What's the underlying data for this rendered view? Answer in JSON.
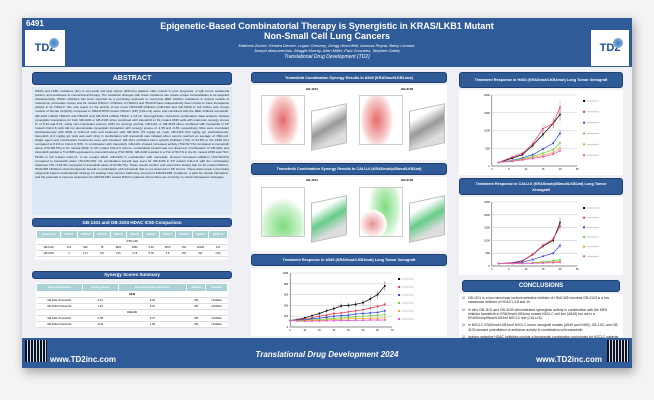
{
  "header": {
    "poster_number": "6491",
    "title_line1": "Epigenetic-Based Combinatorial Therapy is Synergistic in KRAS/LKB1 Mutant",
    "title_line2": "Non-Small Cell Lung Cancers",
    "authors_line1": "Matthew Zucker, Kendra Devore, Logan Chesney, Gregg Hirschfeld, Annissa Reyna, Betsy Livnane,",
    "authors_line2": "Joseph Mascarenhas, Maggie Murray, Allen Miller, Paul Gonzales, Stephen Gately",
    "organization": "Translational Drug Development (TD2)",
    "logo_text": "TD2"
  },
  "abstract": {
    "heading": "ABSTRACT",
    "text": "KRAS and LKB1 mutations (KL) in non-small cell lung cancer (NSCLC) patients often results in poor prognosis, a high tumor mutational burden, and resistance to conventional therapy. The metabolic changes with these mutations can create unique vulnerabilities to be targeted therapeutically. HDAC inhibition has been reported as a promising approach to overcome MEK inhibitor resistance in animal models of melanoma, pancreatic cancer and KL mutant NSCLC. Inhibition of HDAC3 and HDAC8 have independently been shown to have therapeutic activity in KL NSCLC. We now report on the activity of two novel HDAC6/8 inhibitors (GB-1101 and GB-3103) in cell culture and mouse models of human KL(KAS) compared to KRAS/TP53-mutant NSCLC (KP) (CALU-6) alone and combined with the MEK inhibitor trametinib. GB-1101 inhibits HDAC6 and HDAC8 and GB-3103 inhibits HDAC 1,3,8,10. SynergyFinder multi-dose combination data analysis showed synergistic interactions for both GB-1101 or GB-3103 when combined with trametinib in KL mutant A549 cells with maximum synergy scores % of 9.34 and 6.21, using zero interaction potency (ZIP) for synergy scoring. GB-1101 or GB-3103 when combined with trametinib in KP mutant CALU-6 cells did not demonstrate synergistic interaction with synergy scores of -1.58 and -6.53, respectively. Mice were inoculated subcutaneously with A549 or CALU-6 cells and treatment with GB-1101 (75 mg/kg qd, oral), GB-3103 (5.0 mg/kg qd, subcutaneous), trametinib (1.0 mg/kg qd, oral) and each drug in combination with trametinib was initiated when tumors reached an average of 150mm3. Single agent and combination treatments were well tolerated. GB-1101 exhibited tumor growth inhibition (TGI) of 23.8% in the A549 (KL) compared to 8.1% in CALU-6 (KP). In combination with trametinib, GB-1101 showed increased activity (TGI=92.7%) compared to trametinib alone (TGI=65.5%) in KL mutant A549. In KP mutant CALU-6 tumors, combination benefit was not observed. Combination of GB-1101 and trametinib yielded a TGI=80% equivalent to trametinib alone (TGI=90%). GB-3103 resulted in a TGI of 56.7% in the KL mutant A549 and TGI= 55.9% in KP mutant CALU-6. In KL mutant A549, GB-3103 in combination with trametinib, showed increased inhibition (TGI=94.0%) compared to trametinib alone (TGI=83.0%). No combination benefit was seen for GB-3103 in KP mutant CALU-6 with the combination treatment TGI of 93.3% compared to trametinib alone (TGI=90.7%). These results confirm and extend the finding that for KL mutant NSCLC, HDAC6/8 inhibitors show therapeutic benefit in combination with trametinib that is not observed in KP tumors. These data reveal a promising epigenetic-based combinatorial strategy for treating lung cancers harboring concurrent KRAS/LKB1 mutations, a path for clinical translation, and the potential to improve treatments for KRAS/LKB1 mutant NSCLC patients where there are currently no robust therapeutic strategies."
  },
  "ic50": {
    "heading": "GB-1101 and GB-3103 HDAC IC50 Comparison",
    "columns": [
      "Compound",
      "HDAC1",
      "HDAC2",
      "HDAC3",
      "HDAC4",
      "HDAC5",
      "HDAC6",
      "HDAC7",
      "HDAC8",
      "HDAC9",
      "HDAC10"
    ],
    "unit_row": "IC50 (nM)",
    "rows": [
      [
        "GB-1101",
        "131",
        "503",
        "78",
        "3620",
        "3690",
        "0.46",
        "3870",
        "151",
        "10100",
        "137"
      ],
      [
        "GB-3103",
        "3",
        "1.17",
        "5.8",
        "130",
        "71.5",
        "5.78",
        "3.5",
        "151",
        "197",
        "2.63"
      ]
    ]
  },
  "synergy": {
    "heading": "Synergy Scores Summary",
    "columns": [
      "Drug Combination",
      "Synergy Score",
      "Most Synergistic Area Score",
      "Method",
      "Readout"
    ],
    "groups": [
      {
        "name": "A549",
        "rows": [
          [
            "GB-1101+Trametinib",
            "5.44",
            "9.34",
            "ZIP",
            "Inhibition"
          ],
          [
            "GB-3103+Trametinib",
            "1.25",
            "6.21",
            "ZIP",
            "Inhibition"
          ]
        ]
      },
      {
        "name": "CALU-6",
        "rows": [
          [
            "GB-1101+Trametinib",
            "-1.58",
            "5.27",
            "ZIP",
            "Inhibition"
          ],
          [
            "GB-3103+Trametinib",
            "-6.53",
            "1.96",
            "ZIP",
            "Inhibition"
          ]
        ]
      }
    ]
  },
  "synergy_a549": {
    "heading": "Trametinib Combination Synergy Results in A549 (KRASmut/LKB1mut)",
    "left": "GB-1101",
    "right": "GB-3103"
  },
  "synergy_calu6": {
    "heading": "Trametinib Combination Synergy Results  In CALU-6 (KRASmut/p53mut/LKB1wt)",
    "left": "GB-1101",
    "right": "GB-3103"
  },
  "xeno_a549": {
    "heading": "Treatment Response in  A549 (KRASmut/LKB1mut) Lung Tumor Xenograft"
  },
  "xeno_h460": {
    "heading": "Treatment Response in  H460 (KRASmut/LKB1mut) Lung Tumor Xenograft"
  },
  "xeno_calu6": {
    "heading": "Treatment Response in CALU-6 (KRASmut/p53mut/LKB1wt) Lung Tumor Xenograft"
  },
  "conclusions": {
    "heading": "CONCLUSIONS",
    "items": [
      "GB-1101 is a low nanomolar isoform selective inhibitor of HDAC6/8 whereas GB-3103 is a low nanomolar inhibitor of HDAC1,3,8 and 10.",
      "In vitro GB-1101 and GB-3103 demonstrated synergistic activity in combination with the MEK inhibitor trametinib in KRASmut/LKB1mut mutant NSCLC cell line (A549) but not in a KRASmut/p53mut/LKB1wt NSCLC line (CALU-6).",
      "In NSCLC KRASmut/LKB1mut NSCLC tumor xenograft models (A549 and H460), GB-1101 and GB-3103 showed potentiation of antitumor activity in combination with trametinib.",
      "Isoform selective HDAC inhibitors provide a therapeutic combination opportunity for NSCLC patients harboring KRAS/LKB1 mutations."
    ]
  },
  "footer": {
    "url_left": "www.TD2inc.com",
    "url_right": "www.TD2inc.com",
    "conference": "Translational Drug Development 2024"
  },
  "colors": {
    "brand_blue": "#2f5b98",
    "table_header": "#a9d2d6"
  },
  "chart_data": [
    {
      "type": "line",
      "id": "a549",
      "xlim": [
        0,
        70
      ],
      "ylim": [
        0,
        1000
      ],
      "xticks": [
        0,
        10,
        20,
        30,
        40,
        50,
        60,
        70
      ],
      "yticks": [
        0,
        200,
        400,
        600,
        800,
        1000
      ],
      "x": [
        0,
        5,
        10,
        15,
        20,
        25,
        30,
        35,
        40,
        45,
        50,
        55,
        60,
        65
      ],
      "series": [
        {
          "color": "#000000",
          "values": [
            120,
            140,
            170,
            210,
            250,
            300,
            340,
            390,
            400,
            420,
            450,
            520,
            600,
            760
          ]
        },
        {
          "color": "#e8344f",
          "values": [
            120,
            130,
            150,
            170,
            200,
            220,
            250,
            260,
            280,
            300,
            320,
            350,
            380,
            420
          ]
        },
        {
          "color": "#2f3fe0",
          "values": [
            120,
            125,
            135,
            150,
            165,
            180,
            200,
            210,
            220,
            240,
            250,
            260,
            270,
            300
          ]
        },
        {
          "color": "#5fd24a",
          "values": [
            120,
            120,
            125,
            135,
            145,
            150,
            160,
            170,
            180,
            190,
            200,
            210,
            215,
            230
          ]
        },
        {
          "color": "#f0a030",
          "values": [
            120,
            115,
            115,
            120,
            125,
            130,
            140,
            145,
            150,
            155,
            160,
            165,
            165,
            170
          ]
        },
        {
          "color": "#e050d0",
          "values": [
            120,
            110,
            105,
            110,
            110,
            115,
            115,
            120,
            120,
            125,
            125,
            130,
            130,
            130
          ]
        }
      ]
    },
    {
      "type": "line",
      "id": "h460",
      "xlim": [
        0,
        25
      ],
      "ylim": [
        0,
        2000
      ],
      "xticks": [
        0,
        5,
        10,
        15,
        20,
        25
      ],
      "yticks": [
        0,
        500,
        1000,
        1500,
        2000
      ],
      "x": [
        2,
        6,
        9,
        12,
        15,
        18,
        20
      ],
      "series": [
        {
          "color": "#000000",
          "values": [
            100,
            220,
            320,
            580,
            890,
            1200,
            1450
          ]
        },
        {
          "color": "#e8344f",
          "values": [
            100,
            250,
            360,
            620,
            1050,
            1200,
            1650
          ]
        },
        {
          "color": "#2f3fe0",
          "values": [
            100,
            160,
            230,
            320,
            480,
            640,
            920
          ]
        },
        {
          "color": "#5fd24a",
          "values": [
            100,
            150,
            210,
            270,
            360,
            460,
            650
          ]
        },
        {
          "color": "#f0a030",
          "values": [
            100,
            140,
            190,
            240,
            300,
            380,
            500
          ]
        },
        {
          "color": "#e050d0",
          "values": [
            100,
            130,
            170,
            210,
            260,
            330,
            430
          ]
        }
      ]
    },
    {
      "type": "line",
      "id": "calu6",
      "xlim": [
        0,
        25
      ],
      "ylim": [
        0,
        2500
      ],
      "xticks": [
        0,
        5,
        10,
        15,
        20,
        25
      ],
      "yticks": [
        0,
        500,
        1000,
        1500,
        2000,
        2500
      ],
      "x": [
        2,
        6,
        9,
        12,
        15,
        18,
        20
      ],
      "series": [
        {
          "color": "#000000",
          "values": [
            100,
            120,
            200,
            450,
            780,
            1000,
            1700
          ]
        },
        {
          "color": "#e8344f",
          "values": [
            100,
            130,
            210,
            460,
            800,
            1050,
            1550
          ]
        },
        {
          "color": "#2f3fe0",
          "values": [
            100,
            110,
            150,
            250,
            380,
            500,
            800
          ]
        },
        {
          "color": "#5fd24a",
          "values": [
            100,
            100,
            110,
            130,
            160,
            200,
            250
          ]
        },
        {
          "color": "#f0a030",
          "values": [
            100,
            100,
            105,
            115,
            130,
            150,
            180
          ]
        },
        {
          "color": "#e050d0",
          "values": [
            100,
            95,
            100,
            105,
            115,
            125,
            140
          ]
        }
      ]
    }
  ]
}
